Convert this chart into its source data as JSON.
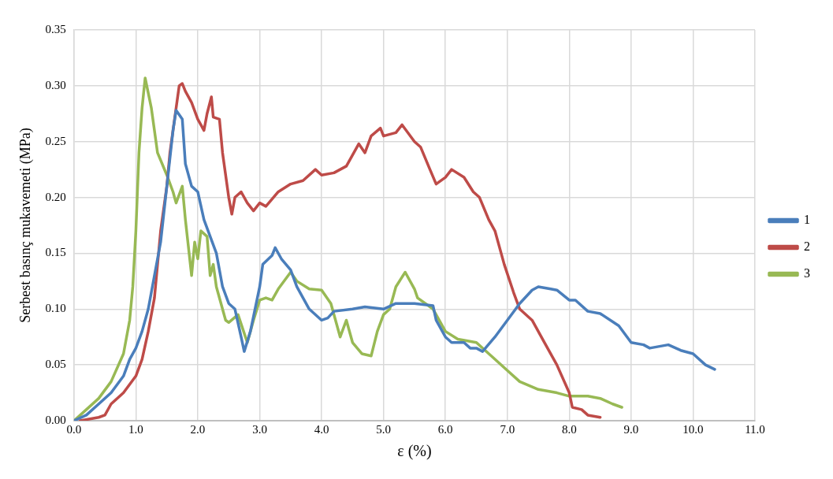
{
  "chart_data": {
    "type": "line",
    "xlabel": "ε (%)",
    "ylabel": "Serbest basınç mukavemeti (MPa)",
    "xlim": [
      0,
      11
    ],
    "ylim": [
      0,
      0.35
    ],
    "xticks": [
      {
        "value": 0,
        "label": "0.0"
      },
      {
        "value": 1,
        "label": "1.0"
      },
      {
        "value": 2,
        "label": "2.0"
      },
      {
        "value": 3,
        "label": "3.0"
      },
      {
        "value": 4,
        "label": "4.0"
      },
      {
        "value": 5,
        "label": "5.0"
      },
      {
        "value": 6,
        "label": "6.0"
      },
      {
        "value": 7,
        "label": "7.0"
      },
      {
        "value": 8,
        "label": "8.0"
      },
      {
        "value": 9,
        "label": "9.0"
      },
      {
        "value": 10,
        "label": "10.0"
      },
      {
        "value": 11,
        "label": "11.0"
      }
    ],
    "yticks": [
      {
        "value": 0,
        "label": "0.00"
      },
      {
        "value": 0.05,
        "label": "0.05"
      },
      {
        "value": 0.1,
        "label": "0.10"
      },
      {
        "value": 0.15,
        "label": "0.15"
      },
      {
        "value": 0.2,
        "label": "0.20"
      },
      {
        "value": 0.25,
        "label": "0.25"
      },
      {
        "value": 0.3,
        "label": "0.30"
      },
      {
        "value": 0.35,
        "label": "0.35"
      }
    ],
    "grid": true,
    "legend": "right",
    "marker": "none",
    "series": [
      {
        "name": "1",
        "color": "#4a7ebb",
        "x": [
          0,
          0.2,
          0.4,
          0.6,
          0.8,
          0.9,
          1.0,
          1.1,
          1.2,
          1.3,
          1.4,
          1.5,
          1.6,
          1.65,
          1.75,
          1.8,
          1.9,
          2.0,
          2.1,
          2.2,
          2.3,
          2.4,
          2.5,
          2.6,
          2.7,
          2.75,
          2.85,
          3.0,
          3.05,
          3.2,
          3.25,
          3.35,
          3.5,
          3.6,
          3.8,
          4.0,
          4.1,
          4.2,
          4.5,
          4.7,
          5.0,
          5.2,
          5.5,
          5.8,
          5.85,
          6.0,
          6.1,
          6.3,
          6.4,
          6.5,
          6.6,
          6.8,
          7.0,
          7.2,
          7.4,
          7.5,
          7.7,
          7.8,
          8.0,
          8.1,
          8.3,
          8.5,
          8.8,
          9.0,
          9.2,
          9.3,
          9.6,
          9.8,
          10.0,
          10.2,
          10.35
        ],
        "values": [
          0,
          0.005,
          0.015,
          0.025,
          0.04,
          0.055,
          0.065,
          0.08,
          0.1,
          0.13,
          0.16,
          0.21,
          0.26,
          0.278,
          0.27,
          0.23,
          0.21,
          0.205,
          0.18,
          0.165,
          0.15,
          0.12,
          0.105,
          0.1,
          0.075,
          0.062,
          0.08,
          0.12,
          0.14,
          0.148,
          0.155,
          0.145,
          0.135,
          0.12,
          0.1,
          0.09,
          0.092,
          0.098,
          0.1,
          0.102,
          0.1,
          0.105,
          0.105,
          0.103,
          0.09,
          0.075,
          0.07,
          0.07,
          0.065,
          0.065,
          0.062,
          0.075,
          0.09,
          0.105,
          0.117,
          0.12,
          0.118,
          0.117,
          0.108,
          0.108,
          0.098,
          0.096,
          0.085,
          0.07,
          0.068,
          0.065,
          0.068,
          0.063,
          0.06,
          0.05,
          0.046
        ]
      },
      {
        "name": "2",
        "color": "#be4b48",
        "x": [
          0.1,
          0.4,
          0.5,
          0.6,
          0.8,
          1.0,
          1.1,
          1.2,
          1.3,
          1.4,
          1.5,
          1.55,
          1.6,
          1.7,
          1.75,
          1.8,
          1.9,
          2.0,
          2.05,
          2.1,
          2.15,
          2.22,
          2.25,
          2.35,
          2.4,
          2.5,
          2.55,
          2.6,
          2.7,
          2.8,
          2.9,
          3.0,
          3.1,
          3.3,
          3.5,
          3.7,
          3.9,
          4.0,
          4.2,
          4.4,
          4.6,
          4.7,
          4.8,
          4.95,
          5.0,
          5.2,
          5.3,
          5.5,
          5.6,
          5.75,
          5.85,
          6.0,
          6.1,
          6.3,
          6.45,
          6.55,
          6.7,
          6.8,
          6.95,
          7.1,
          7.2,
          7.4,
          7.6,
          7.8,
          8.0,
          8.05,
          8.2,
          8.3,
          8.5
        ],
        "values": [
          0,
          0.003,
          0.005,
          0.015,
          0.025,
          0.04,
          0.055,
          0.08,
          0.11,
          0.17,
          0.21,
          0.24,
          0.26,
          0.3,
          0.302,
          0.295,
          0.285,
          0.27,
          0.265,
          0.26,
          0.275,
          0.29,
          0.272,
          0.27,
          0.24,
          0.2,
          0.185,
          0.2,
          0.205,
          0.195,
          0.188,
          0.195,
          0.192,
          0.205,
          0.212,
          0.215,
          0.225,
          0.22,
          0.222,
          0.228,
          0.248,
          0.24,
          0.255,
          0.262,
          0.255,
          0.258,
          0.265,
          0.25,
          0.245,
          0.225,
          0.212,
          0.218,
          0.225,
          0.218,
          0.205,
          0.2,
          0.18,
          0.17,
          0.14,
          0.115,
          0.1,
          0.09,
          0.07,
          0.05,
          0.025,
          0.012,
          0.01,
          0.005,
          0.003
        ]
      },
      {
        "name": "3",
        "color": "#98b954",
        "x": [
          0,
          0.2,
          0.4,
          0.6,
          0.8,
          0.9,
          0.95,
          1.0,
          1.05,
          1.1,
          1.15,
          1.25,
          1.35,
          1.5,
          1.6,
          1.65,
          1.75,
          1.8,
          1.9,
          1.95,
          2.0,
          2.05,
          2.15,
          2.2,
          2.25,
          2.3,
          2.45,
          2.5,
          2.65,
          2.8,
          2.9,
          3.0,
          3.1,
          3.2,
          3.3,
          3.5,
          3.6,
          3.8,
          4.0,
          4.15,
          4.3,
          4.4,
          4.5,
          4.65,
          4.8,
          4.9,
          5.0,
          5.1,
          5.2,
          5.35,
          5.5,
          5.55,
          5.8,
          6.0,
          6.2,
          6.5,
          6.8,
          7.0,
          7.2,
          7.5,
          7.8,
          8.0,
          8.3,
          8.5,
          8.7,
          8.85
        ],
        "values": [
          0,
          0.01,
          0.02,
          0.035,
          0.06,
          0.09,
          0.12,
          0.17,
          0.24,
          0.28,
          0.307,
          0.28,
          0.24,
          0.22,
          0.205,
          0.195,
          0.21,
          0.18,
          0.13,
          0.16,
          0.145,
          0.17,
          0.165,
          0.13,
          0.14,
          0.12,
          0.09,
          0.088,
          0.095,
          0.07,
          0.09,
          0.108,
          0.11,
          0.108,
          0.118,
          0.133,
          0.125,
          0.118,
          0.117,
          0.105,
          0.075,
          0.09,
          0.07,
          0.06,
          0.058,
          0.08,
          0.095,
          0.1,
          0.12,
          0.133,
          0.118,
          0.11,
          0.1,
          0.08,
          0.073,
          0.07,
          0.055,
          0.045,
          0.035,
          0.028,
          0.025,
          0.022,
          0.022,
          0.02,
          0.015,
          0.012
        ]
      }
    ]
  }
}
